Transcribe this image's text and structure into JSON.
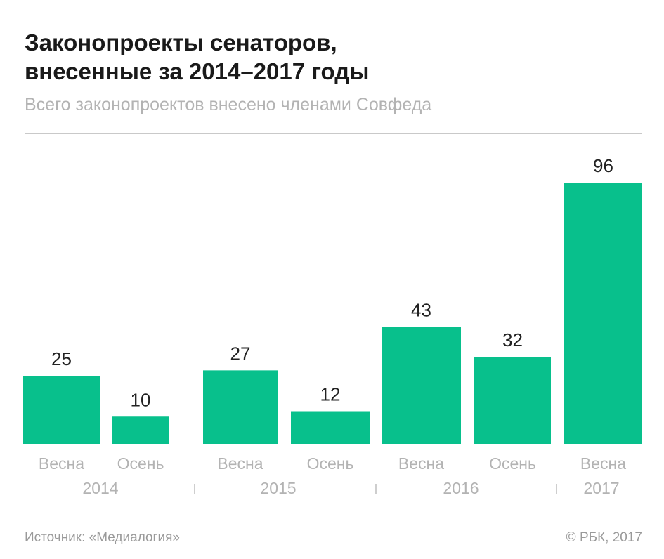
{
  "header": {
    "title_line1": "Законопроекты сенаторов,",
    "title_line2": "внесенные за 2014–2017 годы",
    "subtitle": "Всего законопроектов внесено членами Совфеда"
  },
  "footer": {
    "source": "Источник: «Медиалогия»",
    "copyright": "© РБК, 2017"
  },
  "chart_data": {
    "type": "bar",
    "categories": [
      "Весна",
      "Осень",
      "Весна",
      "Осень",
      "Весна",
      "Осень",
      "Весна"
    ],
    "values": [
      25,
      10,
      27,
      12,
      43,
      32,
      96
    ],
    "years": [
      "2014",
      "2015",
      "2016",
      "2017"
    ],
    "title": "Законопроекты сенаторов, внесенные за 2014–2017 годы",
    "subtitle": "Всего законопроектов внесено членами Совфеда",
    "ylim": [
      0,
      96
    ],
    "grid": false,
    "legend": "none",
    "bar_color": "#08c08c",
    "label_color": "#222222",
    "axis_text_color": "#b3b3b3"
  }
}
